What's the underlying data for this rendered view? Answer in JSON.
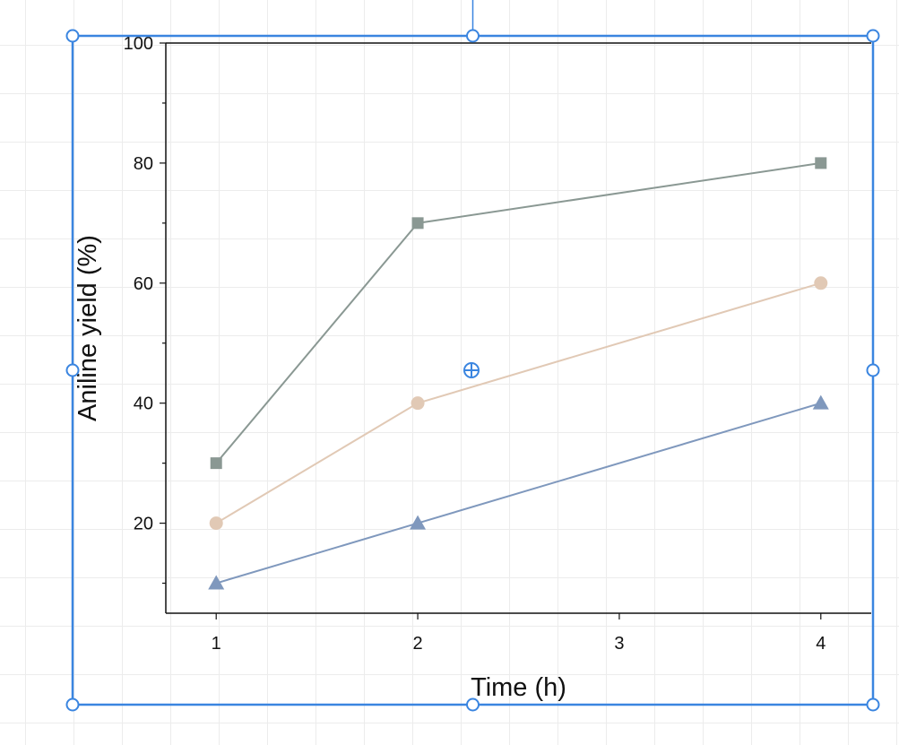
{
  "chart_data": {
    "type": "line",
    "title": "",
    "xlabel": "Time (h)",
    "ylabel": "Aniline yield (%)",
    "x": [
      1,
      2,
      4
    ],
    "xticks": [
      1,
      2,
      3,
      4
    ],
    "xlim": [
      0.75,
      4.25
    ],
    "ylim": [
      5,
      100
    ],
    "yticks": [
      20,
      40,
      60,
      80,
      100
    ],
    "grid": false,
    "series": [
      {
        "values": [
          30,
          70,
          80
        ],
        "marker": "square",
        "color": "#8a9893"
      },
      {
        "values": [
          20,
          40,
          60
        ],
        "marker": "circle",
        "color": "#e1c9b5"
      },
      {
        "values": [
          10,
          20,
          40
        ],
        "marker": "triangle",
        "color": "#7f98bd"
      }
    ]
  },
  "colors": {
    "selection": "#3a85e0",
    "axis": "#111111"
  },
  "icons": {
    "move_handle": "crosshair-move-icon",
    "resize_handle": "resize-handle-icon"
  }
}
